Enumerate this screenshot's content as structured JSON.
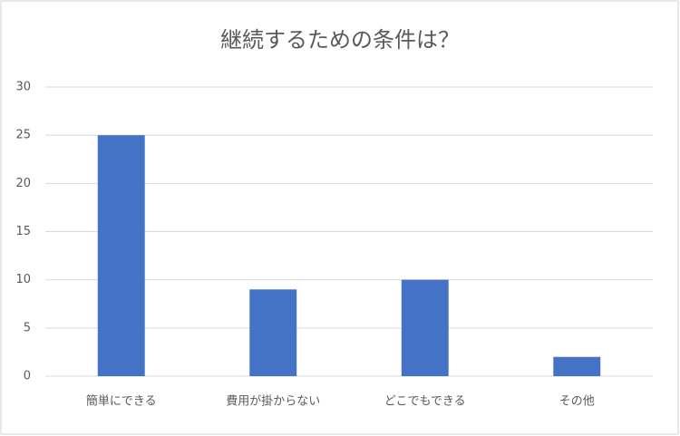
{
  "chart_data": {
    "type": "bar",
    "title": "継続するための条件は？",
    "categories": [
      "簡単にできる",
      "費用が掛からない",
      "どこでもできる",
      "その他"
    ],
    "values": [
      25,
      9,
      10,
      2
    ],
    "color": "#4472c4",
    "ylim": [
      0,
      30
    ],
    "yticks": [
      0,
      5,
      10,
      15,
      20,
      25,
      30
    ],
    "grid": true
  }
}
